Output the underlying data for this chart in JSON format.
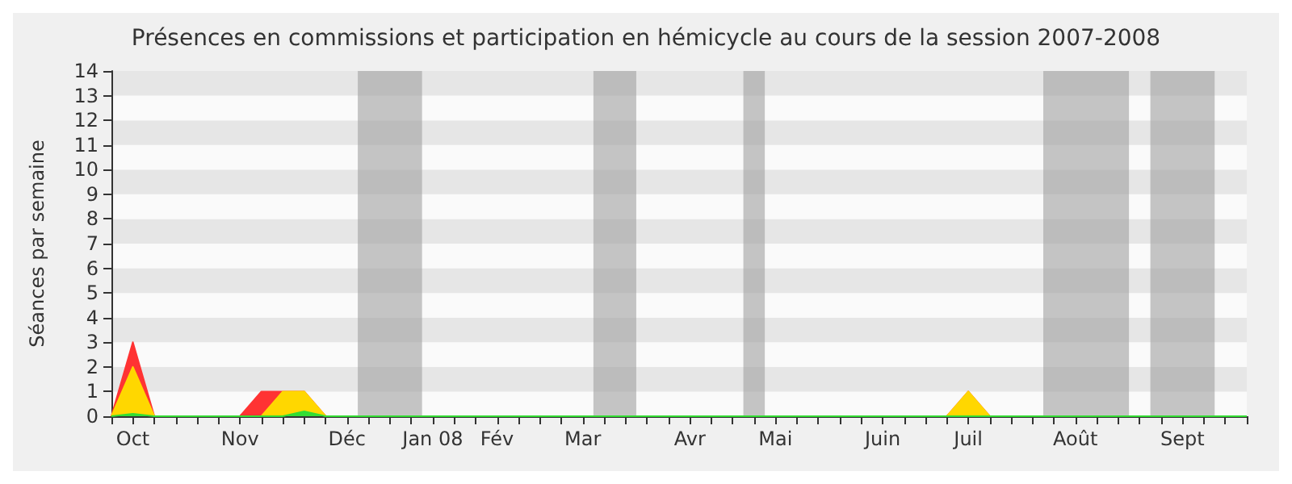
{
  "chart_data": {
    "type": "area",
    "title": "Présences en commissions et participation en hémicycle au cours de la session 2007-2008",
    "ylabel": "Séances par semaine",
    "ylim": [
      0,
      14
    ],
    "yticks": [
      0,
      1,
      2,
      3,
      4,
      5,
      6,
      7,
      8,
      9,
      10,
      11,
      12,
      13,
      14
    ],
    "categories": [
      null,
      "Oct",
      null,
      null,
      null,
      null,
      "Nov",
      null,
      null,
      null,
      null,
      "Déc",
      null,
      null,
      null,
      "Jan 08",
      null,
      null,
      "Fév",
      null,
      null,
      null,
      "Mar",
      null,
      null,
      null,
      null,
      "Avr",
      null,
      null,
      null,
      "Mai",
      null,
      null,
      null,
      null,
      "Juin",
      null,
      null,
      null,
      "Juil",
      null,
      null,
      null,
      null,
      "Août",
      null,
      null,
      null,
      null,
      "Sept",
      null,
      null,
      null
    ],
    "series": [
      {
        "color": "#ff3333",
        "values": [
          0,
          3,
          0,
          0,
          0,
          0,
          0,
          1,
          1,
          1,
          0,
          0,
          0,
          0,
          0,
          0,
          0,
          0,
          0,
          0,
          0,
          0,
          0,
          0,
          0,
          0,
          0,
          0,
          0,
          0,
          0,
          0,
          0,
          0,
          0,
          0,
          0,
          0,
          0,
          0,
          1,
          0,
          0,
          0,
          0,
          0,
          0,
          0,
          0,
          0,
          0,
          0,
          0,
          0
        ]
      },
      {
        "color": "#ffd700",
        "values": [
          0,
          2,
          0,
          0,
          0,
          0,
          0,
          0,
          1,
          1,
          0,
          0,
          0,
          0,
          0,
          0,
          0,
          0,
          0,
          0,
          0,
          0,
          0,
          0,
          0,
          0,
          0,
          0,
          0,
          0,
          0,
          0,
          0,
          0,
          0,
          0,
          0,
          0,
          0,
          0,
          1,
          0,
          0,
          0,
          0,
          0,
          0,
          0,
          0,
          0,
          0,
          0,
          0,
          0
        ]
      },
      {
        "color": "#33dd33",
        "values": [
          0,
          0.1,
          0,
          0,
          0,
          0,
          0,
          0,
          0,
          0.2,
          0,
          0,
          0,
          0,
          0,
          0,
          0,
          0,
          0,
          0,
          0,
          0,
          0,
          0,
          0,
          0,
          0,
          0,
          0,
          0,
          0,
          0,
          0,
          0,
          0,
          0,
          0,
          0,
          0,
          0,
          0,
          0,
          0,
          0,
          0,
          0,
          0,
          0,
          0,
          0,
          0,
          0,
          0,
          0
        ]
      }
    ],
    "grid": false
  }
}
